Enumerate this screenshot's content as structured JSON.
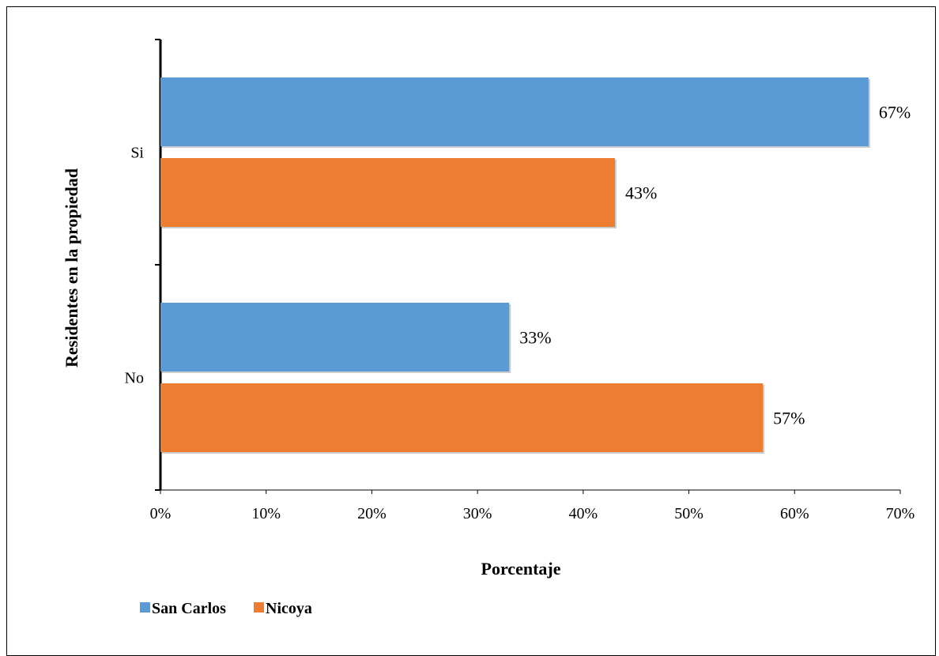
{
  "chart_data": {
    "type": "bar",
    "orientation": "horizontal",
    "categories": [
      "Si",
      "No"
    ],
    "series": [
      {
        "name": "San Carlos",
        "color": "#5B9BD5",
        "values": [
          0.67,
          0.33
        ],
        "labels": [
          "67%",
          "33%"
        ]
      },
      {
        "name": "Nicoya",
        "color": "#ED7D31",
        "values": [
          0.43,
          0.57
        ],
        "labels": [
          "43%",
          "57%"
        ]
      }
    ],
    "xlabel": "Porcentaje",
    "ylabel": "Residentes en la propiedad",
    "xlim": [
      0,
      0.7
    ],
    "x_ticks": [
      "0%",
      "10%",
      "20%",
      "30%",
      "40%",
      "50%",
      "60%",
      "70%"
    ],
    "grid": false,
    "legend": "bottom-left"
  }
}
